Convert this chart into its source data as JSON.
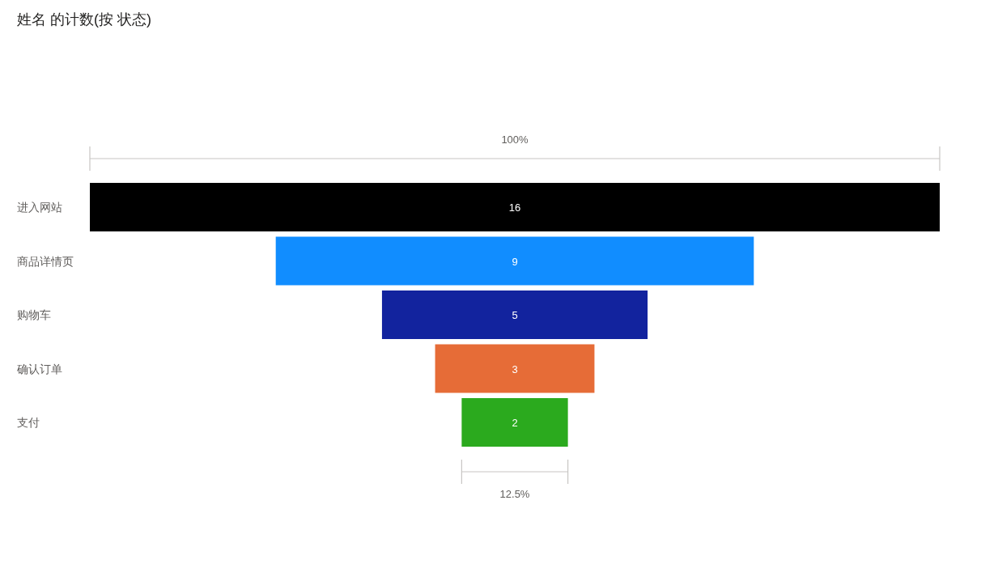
{
  "chart_data": {
    "type": "other",
    "title": "姓名 的计数(按 状态)",
    "categories": [
      "进入网站",
      "商品详情页",
      "购物车",
      "确认订单",
      "支付"
    ],
    "values": [
      16,
      9,
      5,
      3,
      2
    ],
    "colors": [
      "#000000",
      "#118dff",
      "#12239e",
      "#e66c37",
      "#2baa1e"
    ],
    "data_labels": true,
    "annotations": [
      "100%",
      "12.5%"
    ]
  }
}
